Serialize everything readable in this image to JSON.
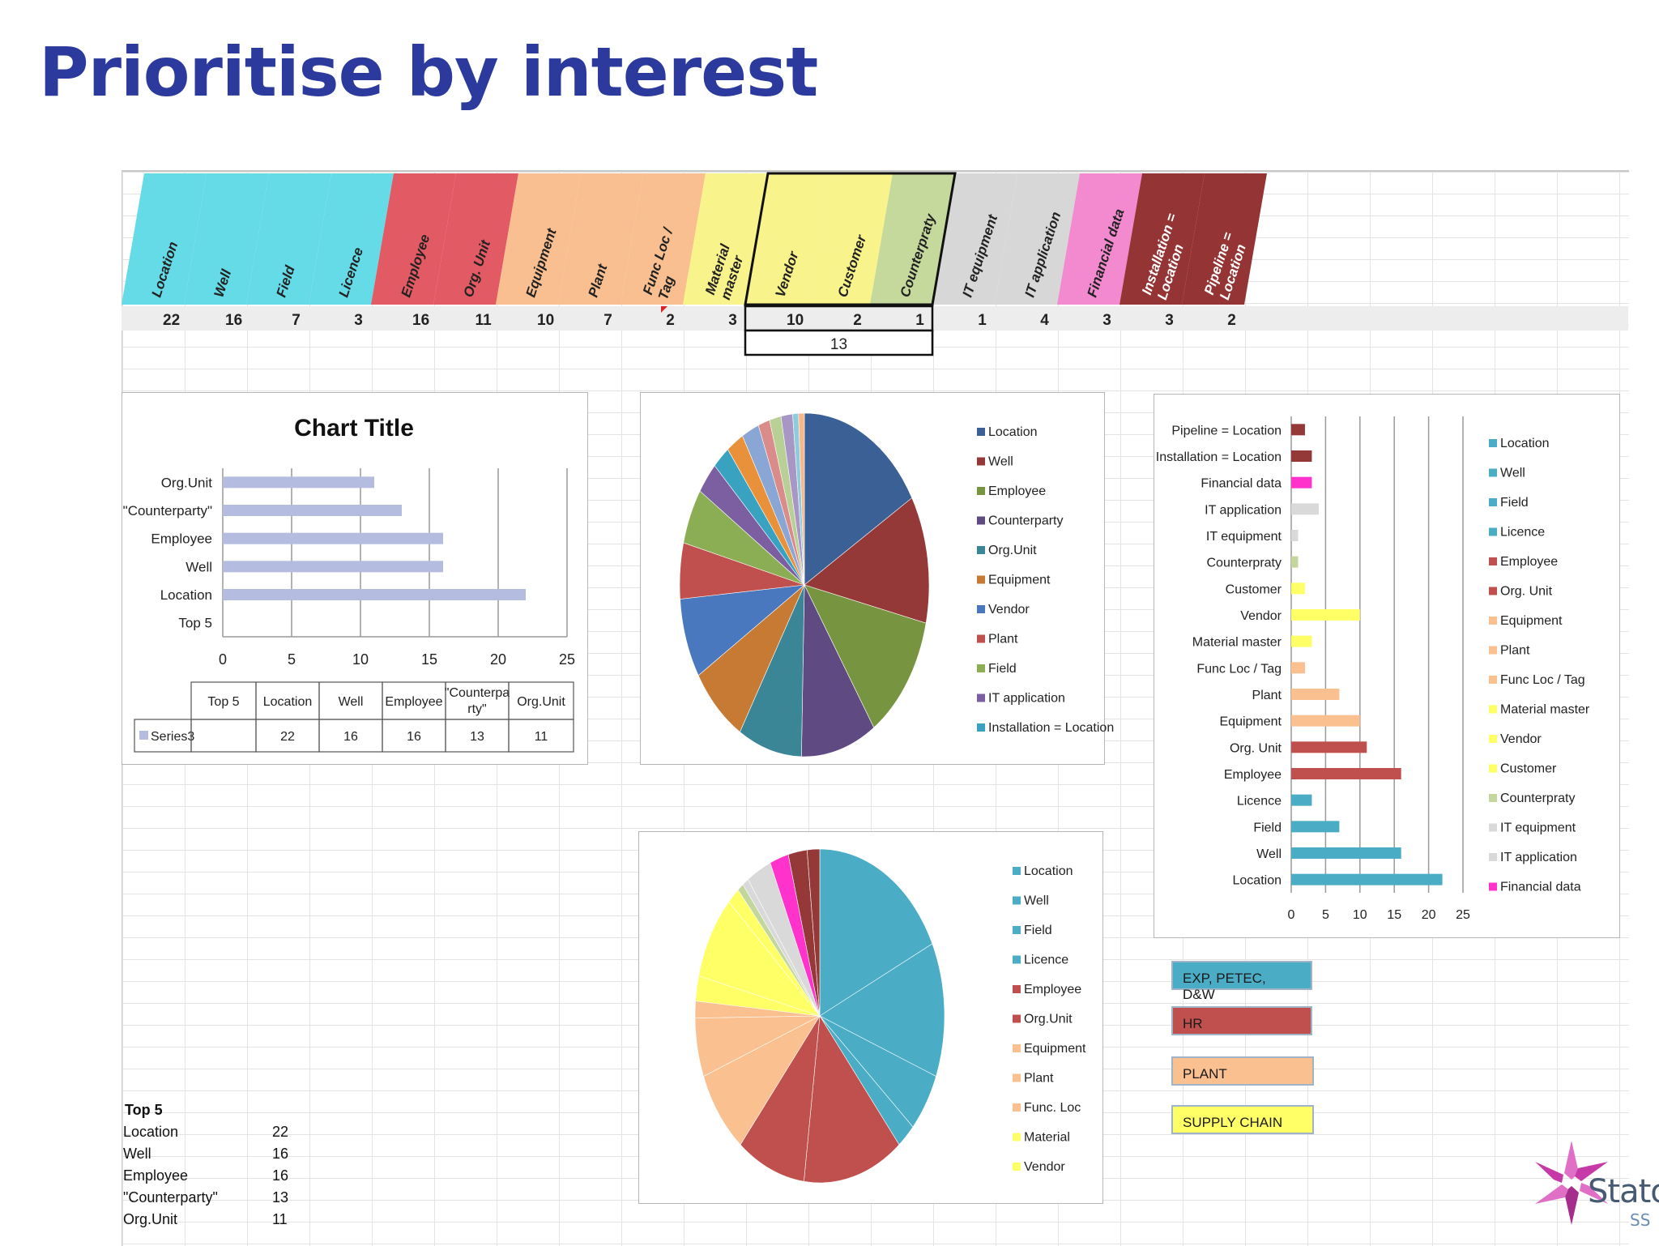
{
  "slide_title": "Prioritise by interest",
  "header_table": {
    "columns": [
      {
        "label": "Location",
        "value": "22",
        "color": "#66dbe8"
      },
      {
        "label": "Well",
        "value": "16",
        "color": "#66dbe8"
      },
      {
        "label": "Field",
        "value": "7",
        "color": "#66dbe8"
      },
      {
        "label": "Licence",
        "value": "3",
        "color": "#66dbe8"
      },
      {
        "label": "Employee",
        "value": "16",
        "color": "#e25a64"
      },
      {
        "label": "Org. Unit",
        "value": "11",
        "color": "#e25a64"
      },
      {
        "label": "Equipment",
        "value": "10",
        "color": "#f9bf90"
      },
      {
        "label": "Plant",
        "value": "7",
        "color": "#f9bf90"
      },
      {
        "label": "Func Loc / Tag",
        "value": "2",
        "color": "#f9bf90"
      },
      {
        "label": "Material master",
        "value": "3",
        "color": "#f8f38a"
      },
      {
        "label": "Vendor",
        "value": "10",
        "color": "#f8f38a"
      },
      {
        "label": "Customer",
        "value": "2",
        "color": "#f8f38a"
      },
      {
        "label": "Counterpraty",
        "value": "1",
        "color": "#c5d99c"
      },
      {
        "label": "IT equipment",
        "value": "1",
        "color": "#d7d7d7"
      },
      {
        "label": "IT application",
        "value": "4",
        "color": "#d7d7d7"
      },
      {
        "label": "Financial data",
        "value": "3",
        "color": "#f38ad0"
      },
      {
        "label": "Installation = Location",
        "value": "3",
        "color": "#943434"
      },
      {
        "label": "Pipeline = Location",
        "value": "2",
        "color": "#943434"
      }
    ],
    "merged_total": "13"
  },
  "sheet_table": {
    "header": "Top 5",
    "rows": [
      {
        "label": "Location",
        "value": "22"
      },
      {
        "label": "Well",
        "value": "16"
      },
      {
        "label": "Employee",
        "value": "16"
      },
      {
        "label": "\"Counterparty\"",
        "value": "13"
      },
      {
        "label": "Org.Unit",
        "value": "11"
      }
    ]
  },
  "category_boxes": [
    {
      "label": "EXP, PETEC, D&W",
      "color": "#4bacc6"
    },
    {
      "label": "HR",
      "color": "#c0504d"
    },
    {
      "label": "PLANT",
      "color": "#fac090"
    },
    {
      "label": "SUPPLY CHAIN",
      "color": "#ffff66"
    }
  ],
  "logo": {
    "name": "Statoil",
    "sub": "SS"
  },
  "chart_data": [
    {
      "type": "bar",
      "orientation": "horizontal",
      "title": "Chart Title",
      "categories": [
        "Org.Unit",
        "\"Counterparty\"",
        "Employee",
        "Well",
        "Location",
        "Top 5"
      ],
      "series": [
        {
          "name": "Series3",
          "values": [
            11,
            13,
            16,
            16,
            22,
            null
          ],
          "color": "#b4bde0"
        }
      ],
      "xlim": [
        0,
        25
      ],
      "xticks": [
        "0",
        "5",
        "10",
        "15",
        "20",
        "25"
      ],
      "grid": true,
      "data_table": {
        "headers": [
          "Top 5",
          "Location",
          "Well",
          "Employee",
          "\"Counterpa rty\"",
          "Org.Unit"
        ],
        "row": [
          "",
          "22",
          "16",
          "16",
          "13",
          "11"
        ]
      }
    },
    {
      "type": "pie",
      "legend_position": "right",
      "slices": [
        {
          "label": "Location",
          "value": 22,
          "color": "#3a6095"
        },
        {
          "label": "Well",
          "value": 16,
          "color": "#953838"
        },
        {
          "label": "Employee",
          "value": 16,
          "color": "#779540"
        },
        {
          "label": "Counterparty",
          "value": 13,
          "color": "#5f4a82"
        },
        {
          "label": "Org.Unit",
          "value": 11,
          "color": "#3a8596"
        },
        {
          "label": "Equipment",
          "value": 10,
          "color": "#c67a33"
        },
        {
          "label": "Vendor",
          "value": 10,
          "color": "#4a78bf"
        },
        {
          "label": "Plant",
          "value": 7,
          "color": "#c0504d"
        },
        {
          "label": "Field",
          "value": 7,
          "color": "#8bae55"
        },
        {
          "label": "IT application",
          "value": 4,
          "color": "#7b5fa0"
        },
        {
          "label": "Installation = Location",
          "value": 3,
          "color": "#38a2c0"
        },
        {
          "value": 3,
          "color": "#e8913a"
        },
        {
          "value": 3,
          "color": "#8aa6d4"
        },
        {
          "value": 2,
          "color": "#d98c8a"
        },
        {
          "value": 2,
          "color": "#b8cf96"
        },
        {
          "value": 2,
          "color": "#a897c4"
        },
        {
          "value": 1,
          "color": "#8dcbdd"
        },
        {
          "value": 1,
          "color": "#f6b889"
        }
      ],
      "legend": [
        "Location",
        "Well",
        "Employee",
        "Counterparty",
        "Org.Unit",
        "Equipment",
        "Vendor",
        "Plant",
        "Field",
        "IT application",
        "Installation = Location"
      ]
    },
    {
      "type": "bar",
      "orientation": "horizontal",
      "legend_position": "right",
      "categories": [
        "Pipeline = Location",
        "Installation = Location",
        "Financial data",
        "IT application",
        "IT equipment",
        "Counterpraty",
        "Customer",
        "Vendor",
        "Material master",
        "Func Loc / Tag",
        "Plant",
        "Equipment",
        "Org. Unit",
        "Employee",
        "Licence",
        "Field",
        "Well",
        "Location"
      ],
      "values": [
        2,
        3,
        3,
        4,
        1,
        1,
        2,
        10,
        3,
        2,
        7,
        10,
        11,
        16,
        3,
        7,
        16,
        22
      ],
      "colors": [
        "#953838",
        "#953838",
        "#ff33cc",
        "#d9d9d9",
        "#d9d9d9",
        "#c3d69b",
        "#ffff66",
        "#ffff66",
        "#ffff66",
        "#fac090",
        "#fac090",
        "#fac090",
        "#c0504d",
        "#c0504d",
        "#4bacc6",
        "#4bacc6",
        "#4bacc6",
        "#4bacc6"
      ],
      "xlim": [
        0,
        25
      ],
      "xticks": [
        "0",
        "5",
        "10",
        "15",
        "20",
        "25"
      ],
      "grid": true,
      "legend": [
        {
          "label": "Location",
          "color": "#4bacc6"
        },
        {
          "label": "Well",
          "color": "#4bacc6"
        },
        {
          "label": "Field",
          "color": "#4bacc6"
        },
        {
          "label": "Licence",
          "color": "#4bacc6"
        },
        {
          "label": "Employee",
          "color": "#c0504d"
        },
        {
          "label": "Org. Unit",
          "color": "#c0504d"
        },
        {
          "label": "Equipment",
          "color": "#fac090"
        },
        {
          "label": "Plant",
          "color": "#fac090"
        },
        {
          "label": "Func Loc / Tag",
          "color": "#fac090"
        },
        {
          "label": "Material master",
          "color": "#ffff66"
        },
        {
          "label": "Vendor",
          "color": "#ffff66"
        },
        {
          "label": "Customer",
          "color": "#ffff66"
        },
        {
          "label": "Counterpraty",
          "color": "#c3d69b"
        },
        {
          "label": "IT equipment",
          "color": "#d9d9d9"
        },
        {
          "label": "IT application",
          "color": "#d9d9d9"
        },
        {
          "label": "Financial data",
          "color": "#ff33cc"
        }
      ]
    },
    {
      "type": "pie",
      "legend_position": "right",
      "slices": [
        {
          "label": "Location",
          "value": 22,
          "color": "#4bacc6"
        },
        {
          "label": "Well",
          "value": 16,
          "color": "#4bacc6"
        },
        {
          "label": "Field",
          "value": 7,
          "color": "#4bacc6"
        },
        {
          "label": "Licence",
          "value": 3,
          "color": "#4bacc6"
        },
        {
          "label": "Employee",
          "value": 16,
          "color": "#c0504d"
        },
        {
          "label": "Org.Unit",
          "value": 11,
          "color": "#c0504d"
        },
        {
          "label": "Equipment",
          "value": 10,
          "color": "#fac090"
        },
        {
          "label": "Plant",
          "value": 7,
          "color": "#fac090"
        },
        {
          "label": "Func. Loc",
          "value": 2,
          "color": "#fac090"
        },
        {
          "label": "Material",
          "value": 3,
          "color": "#ffff66"
        },
        {
          "label": "Vendor",
          "value": 10,
          "color": "#ffff66"
        },
        {
          "value": 2,
          "color": "#ffff66"
        },
        {
          "value": 1,
          "color": "#c3d69b"
        },
        {
          "value": 1,
          "color": "#d9d9d9"
        },
        {
          "value": 4,
          "color": "#d9d9d9"
        },
        {
          "value": 3,
          "color": "#ff33cc"
        },
        {
          "value": 3,
          "color": "#953838"
        },
        {
          "value": 2,
          "color": "#953838"
        }
      ],
      "legend": [
        "Location",
        "Well",
        "Field",
        "Licence",
        "Employee",
        "Org.Unit",
        "Equipment",
        "Plant",
        "Func. Loc",
        "Material",
        "Vendor"
      ]
    }
  ]
}
